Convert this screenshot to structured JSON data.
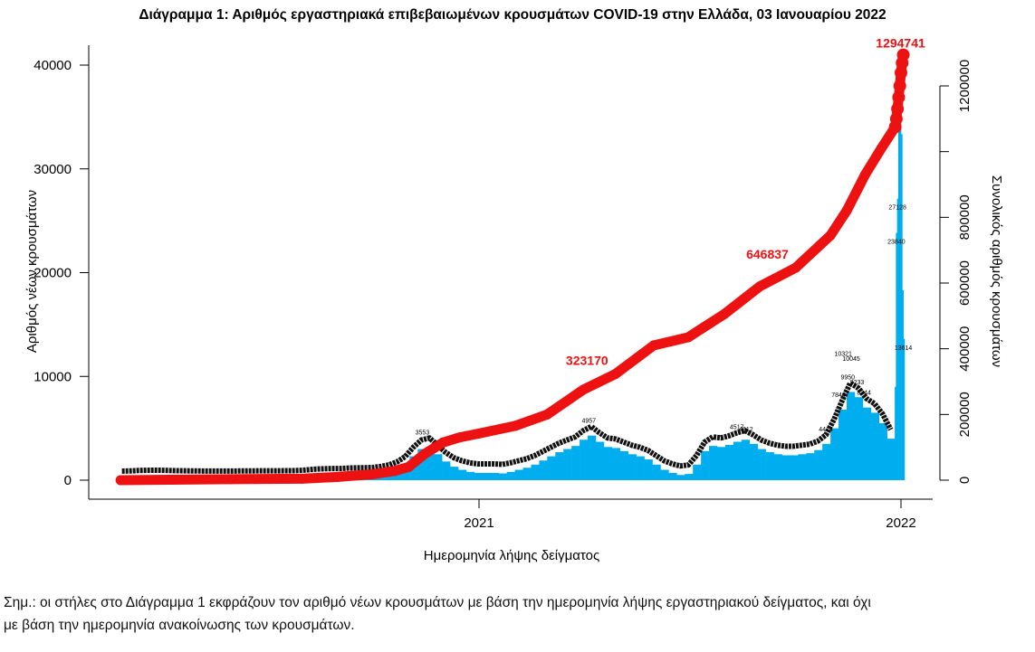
{
  "chart_data": {
    "type": "bar+line",
    "title": "Διάγραμμα 1: Αριθμός εργαστηριακά επιβεβαιωμένων κρουσμάτων COVID-19 στην Ελλάδα, 03 Ιανουαρίου 2022",
    "xlabel": "Ημερομηνία λήψης δείγματος",
    "ylabel_left": "Αριθμός νέων κρουσμάτων",
    "ylabel_right": "Συνολικός αριθμός κρουσμάτων",
    "x_ticks": [
      {
        "date": "2021-01-01",
        "label": "2021"
      },
      {
        "date": "2022-01-01",
        "label": "2022"
      }
    ],
    "ylim_left": [
      0,
      40000
    ],
    "y_ticks_left": [
      "0",
      "10000",
      "20000",
      "30000",
      "40000"
    ],
    "ylim_right": [
      0,
      1200000
    ],
    "y_ticks_right": [
      "0",
      "200000",
      "400000",
      "600000",
      "800000",
      "1200000"
    ],
    "y_ticks_right_unlabeled": [
      1000000
    ],
    "grid": false,
    "colors": {
      "bars": "#00aeef",
      "cumulative": "#ee1111",
      "bar_labels": "#000000"
    },
    "weekly_new_cases": [
      [
        "2020-02-24",
        5
      ],
      [
        "2020-03-02",
        20
      ],
      [
        "2020-03-09",
        60
      ],
      [
        "2020-03-16",
        80
      ],
      [
        "2020-03-23",
        90
      ],
      [
        "2020-03-30",
        80
      ],
      [
        "2020-04-06",
        60
      ],
      [
        "2020-04-13",
        40
      ],
      [
        "2020-04-20",
        30
      ],
      [
        "2020-04-27",
        20
      ],
      [
        "2020-05-04",
        15
      ],
      [
        "2020-05-11",
        15
      ],
      [
        "2020-05-18",
        10
      ],
      [
        "2020-05-25",
        10
      ],
      [
        "2020-06-01",
        15
      ],
      [
        "2020-06-08",
        20
      ],
      [
        "2020-06-15",
        25
      ],
      [
        "2020-06-22",
        30
      ],
      [
        "2020-06-29",
        30
      ],
      [
        "2020-07-06",
        30
      ],
      [
        "2020-07-13",
        40
      ],
      [
        "2020-07-20",
        40
      ],
      [
        "2020-07-27",
        70
      ],
      [
        "2020-08-03",
        130
      ],
      [
        "2020-08-10",
        200
      ],
      [
        "2020-08-17",
        230
      ],
      [
        "2020-08-24",
        250
      ],
      [
        "2020-08-31",
        250
      ],
      [
        "2020-09-07",
        300
      ],
      [
        "2020-09-14",
        320
      ],
      [
        "2020-09-21",
        330
      ],
      [
        "2020-09-28",
        350
      ],
      [
        "2020-10-05",
        450
      ],
      [
        "2020-10-12",
        600
      ],
      [
        "2020-10-19",
        900
      ],
      [
        "2020-10-26",
        1400
      ],
      [
        "2020-11-02",
        2300
      ],
      [
        "2020-11-09",
        3000
      ],
      [
        "2020-11-16",
        3200
      ],
      [
        "2020-11-23",
        2500
      ],
      [
        "2020-11-30",
        1800
      ],
      [
        "2020-12-07",
        1300
      ],
      [
        "2020-12-14",
        1000
      ],
      [
        "2020-12-21",
        800
      ],
      [
        "2020-12-28",
        700
      ],
      [
        "2021-01-04",
        700
      ],
      [
        "2021-01-11",
        700
      ],
      [
        "2021-01-18",
        650
      ],
      [
        "2021-01-25",
        800
      ],
      [
        "2021-02-01",
        1000
      ],
      [
        "2021-02-08",
        1200
      ],
      [
        "2021-02-15",
        1500
      ],
      [
        "2021-02-22",
        1900
      ],
      [
        "2021-03-01",
        2300
      ],
      [
        "2021-03-08",
        2700
      ],
      [
        "2021-03-15",
        3000
      ],
      [
        "2021-03-22",
        3300
      ],
      [
        "2021-03-29",
        3900
      ],
      [
        "2021-04-05",
        4300
      ],
      [
        "2021-04-12",
        3700
      ],
      [
        "2021-04-19",
        3200
      ],
      [
        "2021-04-26",
        3100
      ],
      [
        "2021-05-03",
        2800
      ],
      [
        "2021-05-10",
        2500
      ],
      [
        "2021-05-17",
        2300
      ],
      [
        "2021-05-24",
        2000
      ],
      [
        "2021-05-31",
        1500
      ],
      [
        "2021-06-07",
        1000
      ],
      [
        "2021-06-14",
        700
      ],
      [
        "2021-06-21",
        500
      ],
      [
        "2021-06-28",
        600
      ],
      [
        "2021-07-05",
        1500
      ],
      [
        "2021-07-12",
        2800
      ],
      [
        "2021-07-19",
        3300
      ],
      [
        "2021-07-26",
        3200
      ],
      [
        "2021-08-02",
        3400
      ],
      [
        "2021-08-09",
        3700
      ],
      [
        "2021-08-16",
        3900
      ],
      [
        "2021-08-23",
        3500
      ],
      [
        "2021-08-30",
        3000
      ],
      [
        "2021-09-06",
        2700
      ],
      [
        "2021-09-13",
        2500
      ],
      [
        "2021-09-20",
        2400
      ],
      [
        "2021-09-27",
        2400
      ],
      [
        "2021-10-04",
        2500
      ],
      [
        "2021-10-11",
        2600
      ],
      [
        "2021-10-18",
        2900
      ],
      [
        "2021-10-25",
        3500
      ],
      [
        "2021-11-01",
        5000
      ],
      [
        "2021-11-08",
        6800
      ],
      [
        "2021-11-15",
        8500
      ],
      [
        "2021-11-22",
        8000
      ],
      [
        "2021-11-29",
        7000
      ],
      [
        "2021-12-06",
        6500
      ],
      [
        "2021-12-13",
        5500
      ],
      [
        "2021-12-20",
        4000
      ]
    ],
    "daily_new_cases": [
      [
        "2021-12-27",
        9000
      ],
      [
        "2021-12-28",
        23840
      ],
      [
        "2021-12-29",
        27128
      ],
      [
        "2021-12-30",
        36350
      ],
      [
        "2021-12-31",
        40800
      ],
      [
        "2022-01-01",
        33344
      ],
      [
        "2022-01-02",
        18300
      ],
      [
        "2022-01-03",
        13614
      ]
    ],
    "bar_labels": [
      [
        "2021-11-12",
        "10321"
      ],
      [
        "2021-11-16",
        "9950"
      ],
      [
        "2021-11-19",
        "10045"
      ],
      [
        "2021-11-24",
        "9233"
      ],
      [
        "2021-11-30",
        "8344"
      ],
      [
        "2021-11-08",
        "7844"
      ],
      [
        "2021-08-20",
        "4912"
      ],
      [
        "2021-08-12",
        "4517"
      ],
      [
        "2021-10-28",
        "4414"
      ],
      [
        "2021-12-29",
        "27128"
      ],
      [
        "2021-12-28",
        "23840"
      ],
      [
        "2022-01-03",
        "13614"
      ],
      [
        "2021-04-06",
        "4957"
      ],
      [
        "2020-11-13",
        "3553"
      ]
    ],
    "cumulative": [
      [
        "2020-02-26",
        0
      ],
      [
        "2020-06-01",
        3000
      ],
      [
        "2020-08-01",
        4500
      ],
      [
        "2020-09-01",
        10000
      ],
      [
        "2020-10-01",
        18000
      ],
      [
        "2020-10-20",
        28000
      ],
      [
        "2020-11-01",
        40000
      ],
      [
        "2020-11-15",
        80000
      ],
      [
        "2020-12-01",
        115000
      ],
      [
        "2020-12-15",
        130000
      ],
      [
        "2021-01-01",
        142000
      ],
      [
        "2021-02-01",
        165000
      ],
      [
        "2021-03-01",
        200000
      ],
      [
        "2021-04-01",
        275000
      ],
      [
        "2021-04-29",
        323170
      ],
      [
        "2021-06-01",
        410000
      ],
      [
        "2021-07-01",
        435000
      ],
      [
        "2021-08-01",
        505000
      ],
      [
        "2021-09-01",
        590000
      ],
      [
        "2021-10-02",
        646837
      ],
      [
        "2021-11-01",
        745000
      ],
      [
        "2021-11-15",
        820000
      ],
      [
        "2021-12-01",
        930000
      ],
      [
        "2021-12-15",
        1010000
      ],
      [
        "2021-12-27",
        1075000
      ],
      [
        "2021-12-28",
        1100000
      ],
      [
        "2021-12-29",
        1130000
      ],
      [
        "2021-12-30",
        1165000
      ],
      [
        "2021-12-31",
        1200000
      ],
      [
        "2022-01-01",
        1240000
      ],
      [
        "2022-01-02",
        1270000
      ],
      [
        "2022-01-03",
        1294741
      ]
    ],
    "cumulative_labels": [
      {
        "date": "2021-04-29",
        "text": "323170"
      },
      {
        "date": "2021-10-02",
        "text": "646837"
      },
      {
        "date": "2022-01-03",
        "text": "1294741"
      }
    ]
  },
  "note": {
    "line1": "Σημ.:  οι στήλες στο Διάγραμμα 1 εκφράζουν τον αριθμό νέων κρουσμάτων με βάση την ημερομηνία λήψης εργαστηριακού δείγματος, και όχι",
    "line2": "με βάση την ημερομηνία ανακοίνωσης των κρουσμάτων."
  }
}
